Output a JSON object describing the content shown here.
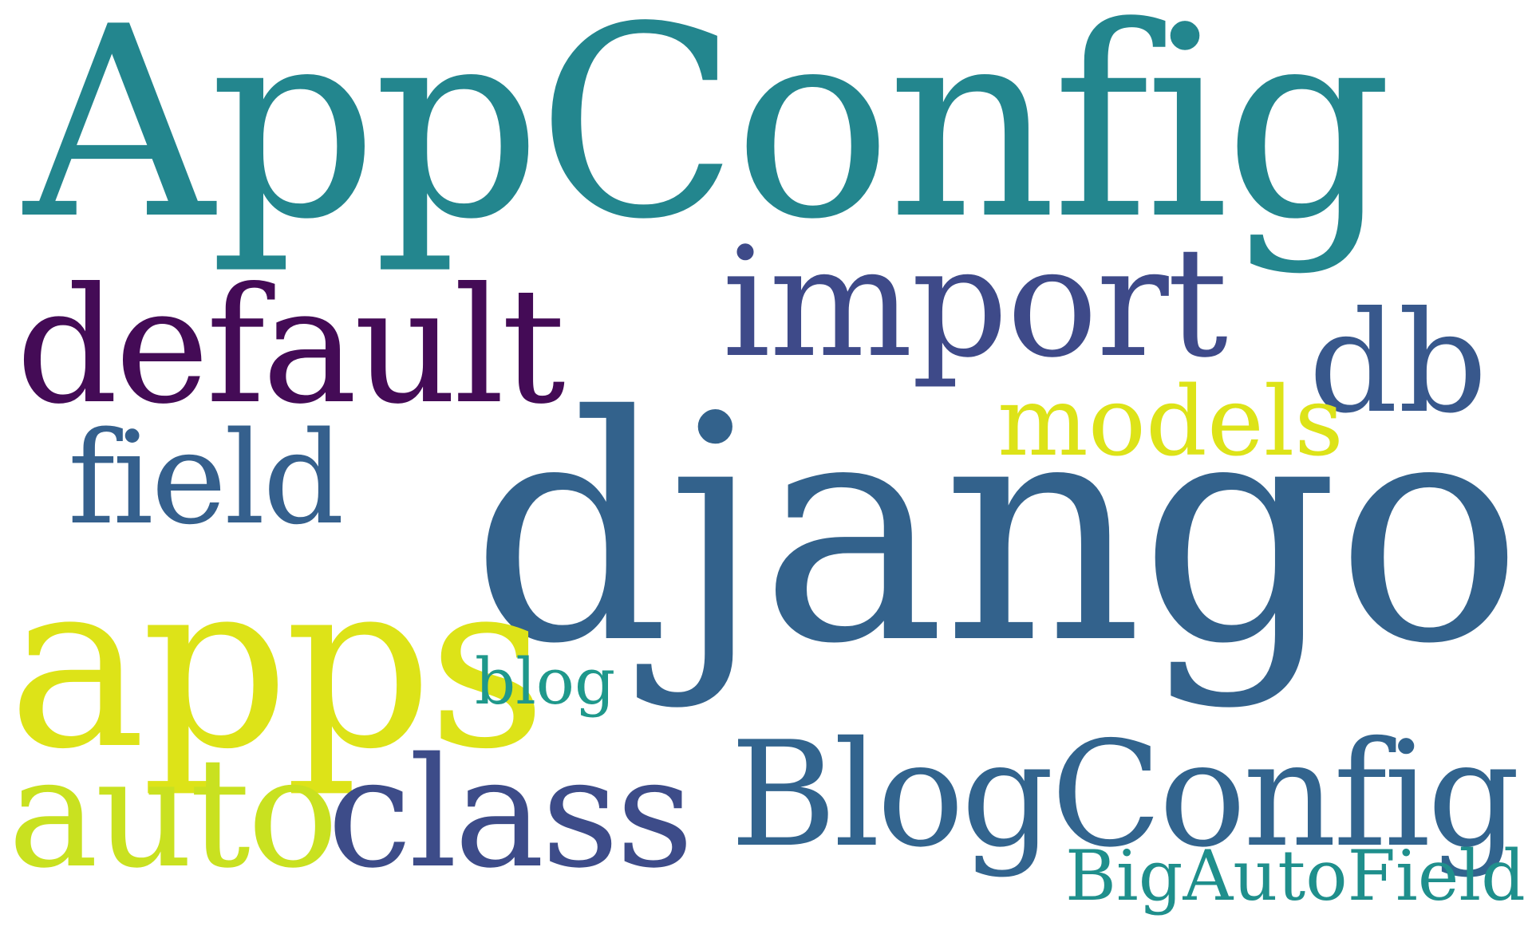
{
  "word_cloud": {
    "words": [
      {
        "key": "appconfig",
        "text": "AppConfig",
        "color": "#23868e"
      },
      {
        "key": "import",
        "text": "import",
        "color": "#3e4a89"
      },
      {
        "key": "default",
        "text": "default",
        "color": "#440b56"
      },
      {
        "key": "db",
        "text": "db",
        "color": "#38588c"
      },
      {
        "key": "models",
        "text": "models",
        "color": "#dde318"
      },
      {
        "key": "field",
        "text": "field",
        "color": "#35608d"
      },
      {
        "key": "django",
        "text": "django",
        "color": "#33628c"
      },
      {
        "key": "apps",
        "text": "apps",
        "color": "#dde318"
      },
      {
        "key": "blog",
        "text": "blog",
        "color": "#1f988b"
      },
      {
        "key": "auto",
        "text": "auto",
        "color": "#c9e120"
      },
      {
        "key": "class",
        "text": "class",
        "color": "#3d4c89"
      },
      {
        "key": "blogconfig",
        "text": "BlogConfig",
        "color": "#32648e"
      },
      {
        "key": "bigauto",
        "text": "BigAutoField",
        "color": "#1f8f8c"
      }
    ]
  }
}
